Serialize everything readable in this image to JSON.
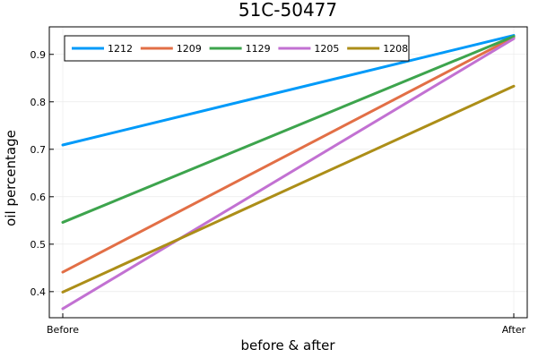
{
  "chart_data": {
    "type": "line",
    "title": "51C-50477",
    "xlabel": "before & after",
    "ylabel": "oil percentage",
    "categories": [
      "Before",
      "After"
    ],
    "ylim": [
      0.345,
      0.958
    ],
    "yticks": [
      0.4,
      0.5,
      0.6,
      0.7,
      0.8,
      0.9
    ],
    "ytick_labels": [
      "0.4",
      "0.5",
      "0.6",
      "0.7",
      "0.8",
      "0.9"
    ],
    "grid": true,
    "legend_position": "top-left",
    "series": [
      {
        "name": "1212",
        "color": "#009af9",
        "values": [
          0.709,
          0.94
        ]
      },
      {
        "name": "1209",
        "color": "#e26f46",
        "values": [
          0.441,
          0.936
        ]
      },
      {
        "name": "1129",
        "color": "#3da44d",
        "values": [
          0.546,
          0.938
        ]
      },
      {
        "name": "1205",
        "color": "#c271d2",
        "values": [
          0.364,
          0.933
        ]
      },
      {
        "name": "1208",
        "color": "#ac8e18",
        "values": [
          0.399,
          0.833
        ]
      }
    ]
  }
}
